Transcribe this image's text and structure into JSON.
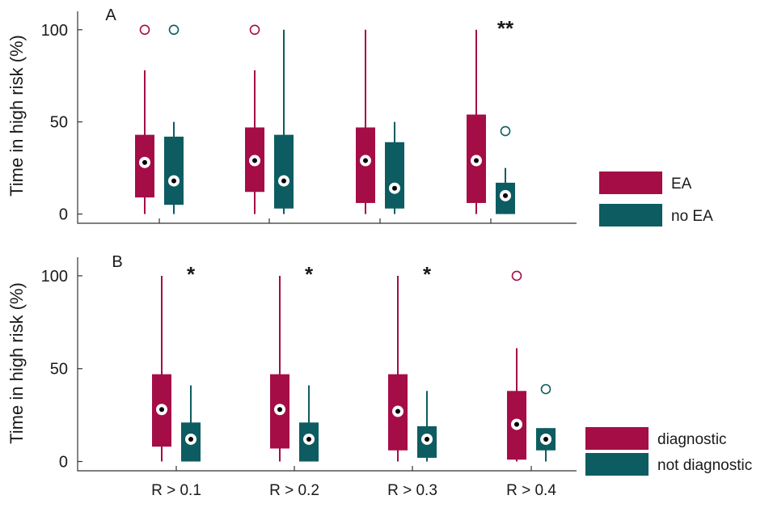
{
  "colors": {
    "series1": "#a50d47",
    "series2": "#0d5c61",
    "median_fill": "#ffffff",
    "median_dot": "#000000"
  },
  "chart_data": [
    {
      "type": "box",
      "panel_label": "A",
      "ylabel": "Time in high risk (%)",
      "ylim": [
        -5,
        110
      ],
      "yticks": [
        0,
        50,
        100
      ],
      "categories": [
        "R > 0.1",
        "R > 0.2",
        "R > 0.3",
        "R > 0.4"
      ],
      "show_xticklabels": false,
      "significance": [
        {
          "category_index": 3,
          "label": "**"
        }
      ],
      "legend": {
        "placement": "right",
        "entries": [
          "EA",
          "no EA"
        ]
      },
      "series": [
        {
          "name": "EA",
          "color_key": "series1",
          "boxes": [
            {
              "whisker_low": 0,
              "q1": 9,
              "median": 28,
              "q3": 43,
              "whisker_high": 78,
              "outliers": [
                100
              ]
            },
            {
              "whisker_low": 0,
              "q1": 12,
              "median": 29,
              "q3": 47,
              "whisker_high": 78,
              "outliers": [
                100
              ]
            },
            {
              "whisker_low": 0,
              "q1": 6,
              "median": 29,
              "q3": 47,
              "whisker_high": 100,
              "outliers": []
            },
            {
              "whisker_low": 0,
              "q1": 6,
              "median": 29,
              "q3": 54,
              "whisker_high": 100,
              "outliers": []
            }
          ]
        },
        {
          "name": "no EA",
          "color_key": "series2",
          "boxes": [
            {
              "whisker_low": 0,
              "q1": 5,
              "median": 18,
              "q3": 42,
              "whisker_high": 50,
              "outliers": [
                100
              ]
            },
            {
              "whisker_low": 0,
              "q1": 3,
              "median": 18,
              "q3": 43,
              "whisker_high": 100,
              "outliers": []
            },
            {
              "whisker_low": 0,
              "q1": 3,
              "median": 14,
              "q3": 39,
              "whisker_high": 50,
              "outliers": []
            },
            {
              "whisker_low": 0,
              "q1": 0,
              "median": 10,
              "q3": 17,
              "whisker_high": 25,
              "outliers": [
                45
              ]
            }
          ]
        }
      ]
    },
    {
      "type": "box",
      "panel_label": "B",
      "ylabel": "Time in high risk (%)",
      "ylim": [
        -5,
        110
      ],
      "yticks": [
        0,
        50,
        100
      ],
      "categories": [
        "R > 0.1",
        "R > 0.2",
        "R > 0.3",
        "R > 0.4"
      ],
      "show_xticklabels": true,
      "significance": [
        {
          "category_index": 0,
          "label": "*"
        },
        {
          "category_index": 1,
          "label": "*"
        },
        {
          "category_index": 2,
          "label": "*"
        }
      ],
      "legend": {
        "placement": "right",
        "entries": [
          "diagnostic",
          "not diagnostic"
        ]
      },
      "series": [
        {
          "name": "diagnostic",
          "color_key": "series1",
          "boxes": [
            {
              "whisker_low": 0,
              "q1": 8,
              "median": 28,
              "q3": 47,
              "whisker_high": 100,
              "outliers": []
            },
            {
              "whisker_low": 0,
              "q1": 7,
              "median": 28,
              "q3": 47,
              "whisker_high": 100,
              "outliers": []
            },
            {
              "whisker_low": 0,
              "q1": 6,
              "median": 27,
              "q3": 47,
              "whisker_high": 100,
              "outliers": []
            },
            {
              "whisker_low": 0,
              "q1": 1,
              "median": 20,
              "q3": 38,
              "whisker_high": 61,
              "outliers": [
                100
              ]
            }
          ]
        },
        {
          "name": "not diagnostic",
          "color_key": "series2",
          "boxes": [
            {
              "whisker_low": 0,
              "q1": 0,
              "median": 12,
              "q3": 21,
              "whisker_high": 41,
              "outliers": []
            },
            {
              "whisker_low": 0,
              "q1": 0,
              "median": 12,
              "q3": 21,
              "whisker_high": 41,
              "outliers": []
            },
            {
              "whisker_low": 0,
              "q1": 2,
              "median": 12,
              "q3": 19,
              "whisker_high": 38,
              "outliers": []
            },
            {
              "whisker_low": 0,
              "q1": 6,
              "median": 12,
              "q3": 18,
              "whisker_high": 18,
              "outliers": [
                39
              ]
            }
          ]
        }
      ]
    }
  ]
}
